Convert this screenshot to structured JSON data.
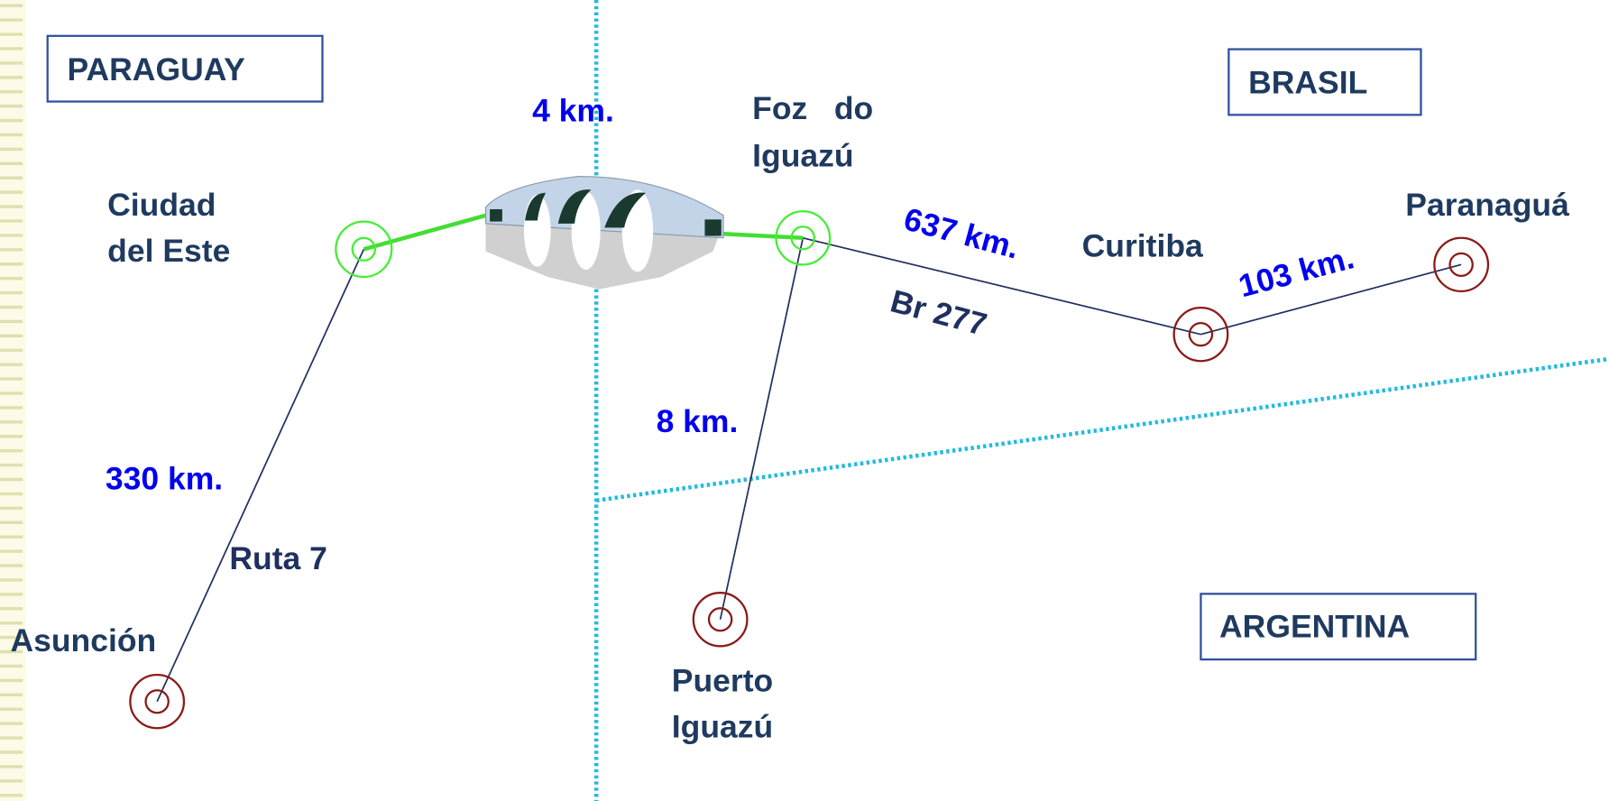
{
  "countries": [
    "PARAGUAY",
    "BRASIL",
    "ARGENTINA"
  ],
  "cities": [
    {
      "lines": [
        "Ciudad",
        "del Este"
      ]
    },
    {
      "lines": [
        "Foz   do",
        "Iguazú"
      ]
    },
    {
      "lines": [
        "Curitiba"
      ]
    },
    {
      "lines": [
        "Paranaguá"
      ]
    },
    {
      "lines": [
        "Asunción"
      ]
    },
    {
      "lines": [
        "Puerto",
        "Iguazú"
      ]
    }
  ],
  "distances": [
    "4 km.",
    "637 km.",
    "103 km.",
    "8 km.",
    "330 km."
  ],
  "routes": [
    "Ruta 7",
    "Br 277"
  ]
}
